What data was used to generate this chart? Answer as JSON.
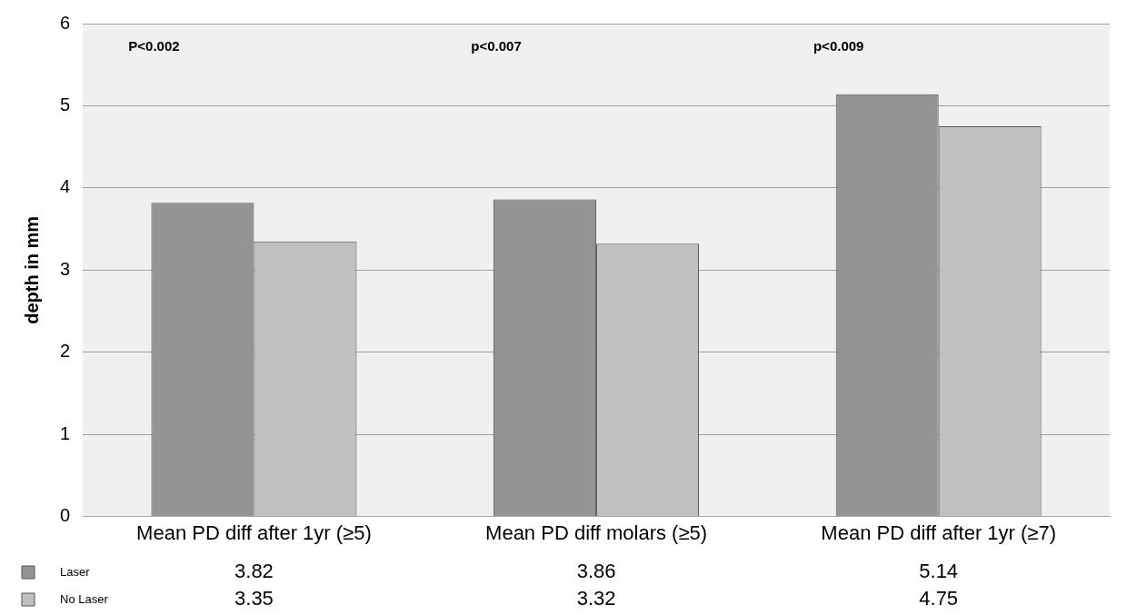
{
  "chart_data": {
    "type": "bar",
    "ylabel": "depth in mm",
    "categories": [
      "Mean PD diff after 1yr (≥5)",
      "Mean PD diff molars (≥5)",
      "Mean PD diff after 1yr (≥7)"
    ],
    "series": [
      {
        "name": "Laser",
        "color": "#949494",
        "values": [
          3.82,
          3.86,
          5.14
        ]
      },
      {
        "name": "No Laser",
        "color": "#c0c0c0",
        "values": [
          3.35,
          3.32,
          4.75
        ]
      }
    ],
    "ylim": [
      0,
      6
    ],
    "yticks": [
      0,
      1,
      2,
      3,
      4,
      5,
      6
    ],
    "grid": "y",
    "legend": "bottom",
    "data_labels": true,
    "annotations": [
      "P<0.002",
      "p<0.007",
      "p<0.009"
    ]
  }
}
